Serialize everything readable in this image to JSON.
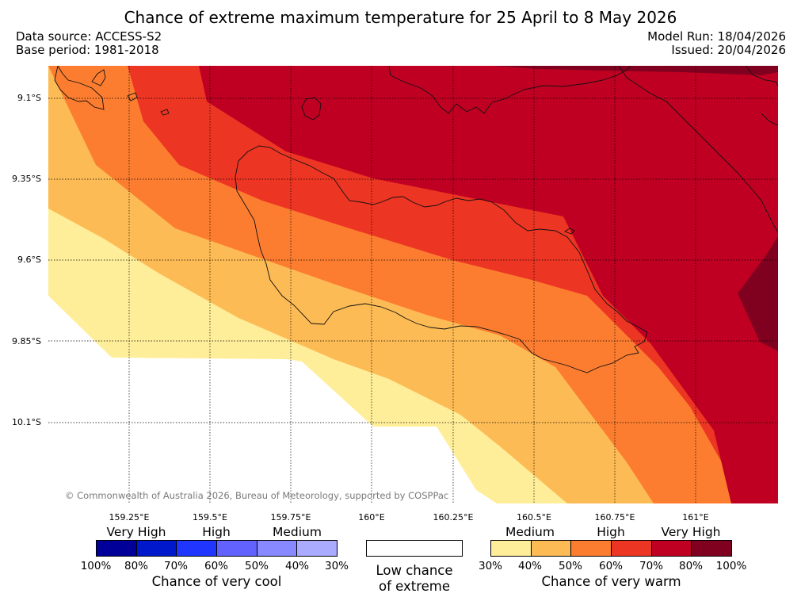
{
  "title": "Chance of extreme maximum temperature for 25 April to 8 May 2026",
  "meta": {
    "data_source": "Data source: ACCESS-S2",
    "base_period": "Base period: 1981-2018",
    "model_run": "Model Run: 18/04/2026",
    "issued": "Issued: 20/04/2026"
  },
  "map": {
    "copyright": "© Commonwealth of Australia 2026, Bureau of Meteorology, supported by COSPPac",
    "lat_labels": [
      "9.1°S",
      "9.35°S",
      "9.6°S",
      "9.85°S",
      "10.1°S"
    ],
    "lon_labels": [
      "159.25°E",
      "159.5°E",
      "159.75°E",
      "160°E",
      "160.25°E",
      "160.5°E",
      "160.75°E",
      "161°E"
    ],
    "colors": {
      "warm_30_40": "#ffee99",
      "warm_40_50": "#fdbb55",
      "warm_50_60": "#fc7d30",
      "warm_60_70": "#ec3523",
      "warm_70_80": "#c00022",
      "warm_80_100": "#80001f"
    }
  },
  "legend": {
    "cool": {
      "categories": [
        "Very High",
        "High",
        "Medium"
      ],
      "ticks": [
        "100%",
        "80%",
        "70%",
        "60%",
        "50%",
        "40%",
        "30%"
      ],
      "caption": "Chance of very cool",
      "colors": [
        "#000098",
        "#0018cc",
        "#2036ff",
        "#6262ff",
        "#8888ff",
        "#aaaaff"
      ]
    },
    "low": {
      "line1": "Low chance",
      "line2": "of extreme"
    },
    "warm": {
      "categories": [
        "Medium",
        "High",
        "Very High"
      ],
      "ticks": [
        "30%",
        "40%",
        "50%",
        "60%",
        "70%",
        "80%",
        "100%"
      ],
      "caption": "Chance of very warm",
      "colors": [
        "#ffee99",
        "#fdbb55",
        "#fc7d30",
        "#ec3523",
        "#c00022",
        "#80001f"
      ]
    }
  }
}
